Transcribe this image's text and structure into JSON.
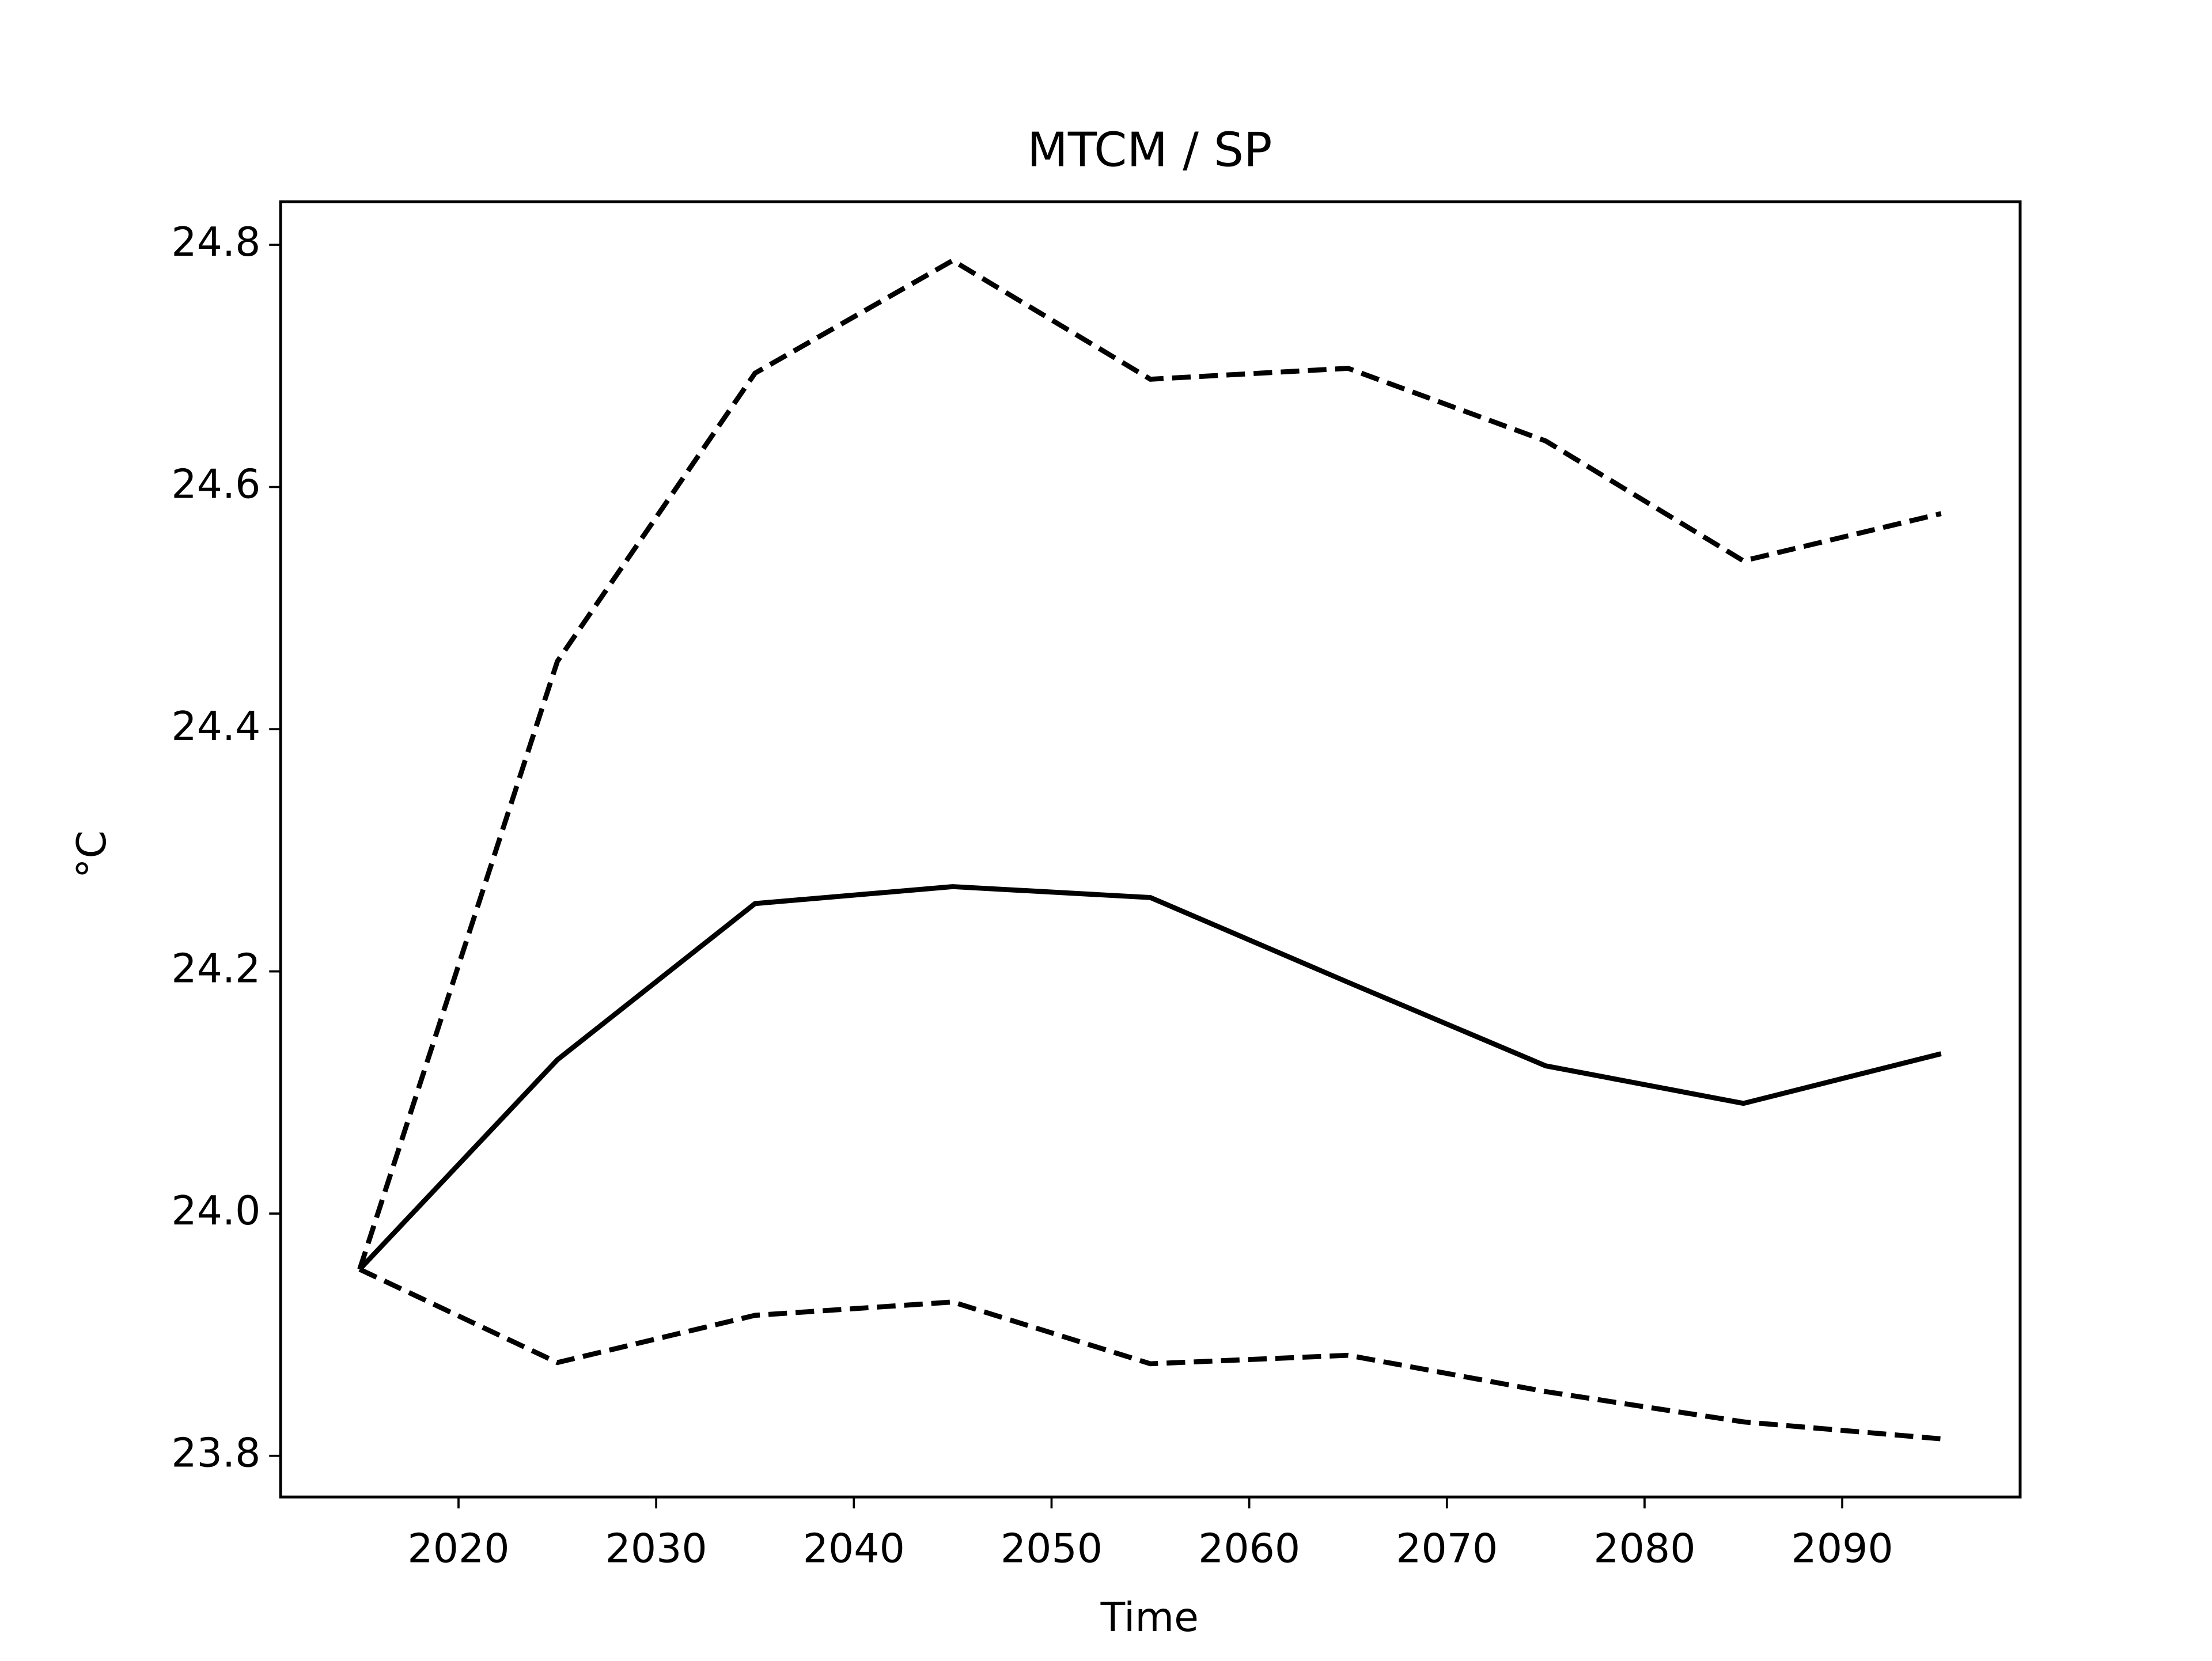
{
  "chart_data": {
    "type": "line",
    "title": "MTCM / SP",
    "xlabel": "Time",
    "ylabel": "°C",
    "x": [
      2015,
      2025,
      2035,
      2045,
      2055,
      2065,
      2075,
      2085,
      2095
    ],
    "series": [
      {
        "color": "#000000",
        "linestyle": "solid",
        "values": [
          23.954,
          24.127,
          24.256,
          24.27,
          24.261,
          24.191,
          24.122,
          24.091,
          24.132
        ]
      },
      {
        "color": "#000000",
        "linestyle": "dashed",
        "values": [
          23.954,
          24.456,
          24.694,
          24.787,
          24.689,
          24.698,
          24.638,
          24.539,
          24.578
        ]
      },
      {
        "color": "#000000",
        "linestyle": "dashed",
        "values": [
          23.954,
          23.877,
          23.916,
          23.927,
          23.876,
          23.883,
          23.853,
          23.828,
          23.814
        ]
      }
    ],
    "xlim": [
      2011,
      2099
    ],
    "xticks": [
      2020,
      2030,
      2040,
      2050,
      2060,
      2070,
      2080,
      2090
    ],
    "ylim": [
      23.766,
      24.8355
    ],
    "yticks": [
      23.8,
      {
        "value": 24,
        "label": "24.0"
      },
      24.2,
      24.4,
      24.6,
      24.8
    ],
    "grid": false
  }
}
